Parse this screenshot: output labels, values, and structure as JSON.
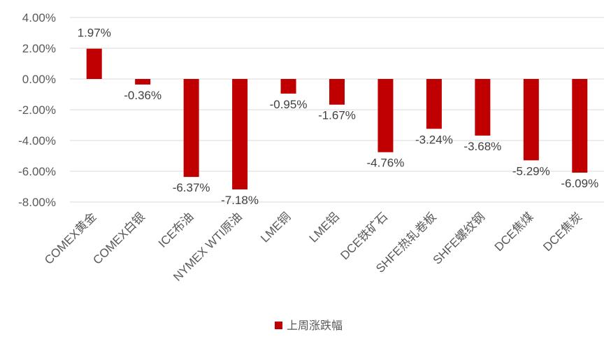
{
  "chart_data": {
    "type": "bar",
    "title": "",
    "xlabel": "",
    "ylabel": "",
    "categories": [
      "COMEX黄金",
      "COMEX白银",
      "ICE布油",
      "NYMEX WTI原油",
      "LME铜",
      "LME铝",
      "DCE铁矿石",
      "SHFE热轧卷板",
      "SHFE螺纹钢",
      "DCE焦煤",
      "DCE焦炭"
    ],
    "series": [
      {
        "name": "上周涨跌幅",
        "values": [
          1.97,
          -0.36,
          -6.37,
          -7.18,
          -0.95,
          -1.67,
          -4.76,
          -3.24,
          -3.68,
          -5.29,
          -6.09
        ],
        "labels": [
          "1.97%",
          "-0.36%",
          "-6.37%",
          "-7.18%",
          "-0.95%",
          "-1.67%",
          "-4.76%",
          "-3.24%",
          "-3.68%",
          "-5.29%",
          "-6.09%"
        ]
      }
    ],
    "ylim": [
      -8,
      4
    ],
    "yticks": [
      4,
      2,
      0,
      -2,
      -4,
      -6,
      -8
    ],
    "ytick_labels": [
      "4.00%",
      "2.00%",
      "0.00%",
      "-2.00%",
      "-4.00%",
      "-6.00%",
      "-8.00%"
    ],
    "grid": true,
    "legend": "bottom-center",
    "colors": {
      "bar": "#C00000",
      "grid": "#D9D9D9"
    }
  }
}
